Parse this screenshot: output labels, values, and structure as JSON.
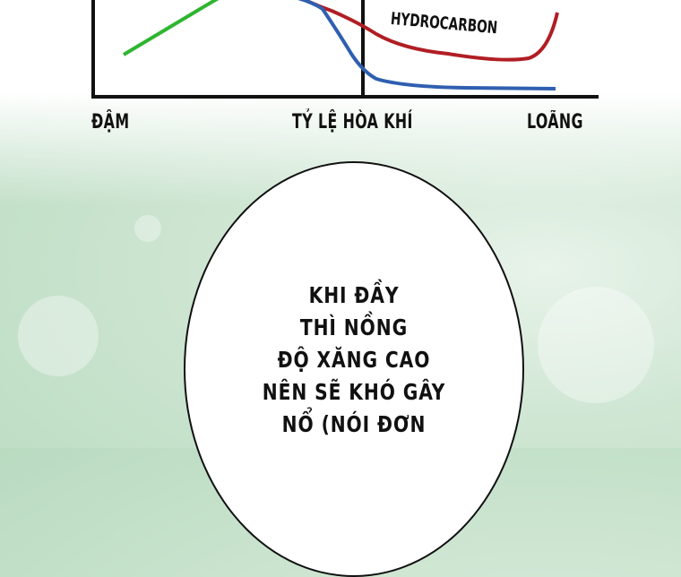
{
  "chart": {
    "curve_label": "HYDROCARBON",
    "x_left_label": "ĐẬM",
    "x_center_label": "TỶ LỆ HÒA KHÍ",
    "x_right_label": "LOÃNG",
    "colors": {
      "green": "#2fb52f",
      "red": "#b01e24",
      "blue": "#2f5fb0"
    }
  },
  "speech_bubble": {
    "lines": [
      "KHI ĐẦY",
      "THÌ NỒNG",
      "ĐỘ XĂNG CAO",
      "NÊN SẼ KHÓ GÂY",
      "NỔ (NÓI ĐƠN"
    ]
  }
}
